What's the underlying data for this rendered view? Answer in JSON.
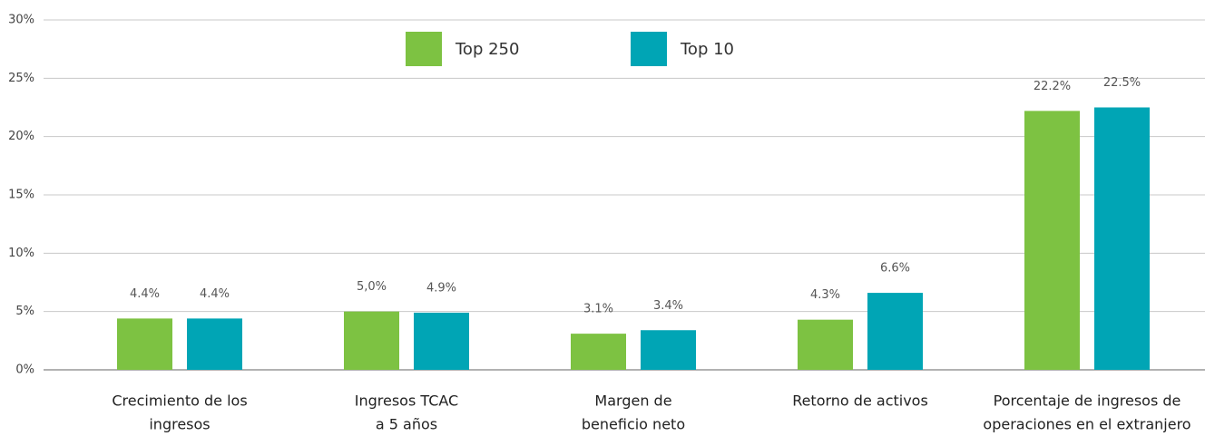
{
  "chart_data": {
    "type": "bar",
    "categories": [
      [
        "Crecimiento de los",
        "ingresos"
      ],
      [
        "Ingresos TCAC",
        "a 5 años"
      ],
      [
        "Margen de",
        "beneficio neto"
      ],
      [
        "Retorno de activos"
      ],
      [
        "Porcentaje de ingresos de",
        "operaciones en el extranjero"
      ]
    ],
    "series": [
      {
        "name": "Top 250",
        "color": "#7dc242",
        "values": [
          4.4,
          5.0,
          3.1,
          4.3,
          22.2
        ],
        "value_labels": [
          "4.4%",
          "5,0%",
          "3.1%",
          "4.3%",
          "22.2%"
        ]
      },
      {
        "name": "Top 10",
        "color": "#00a5b5",
        "values": [
          4.4,
          4.9,
          3.4,
          6.6,
          22.5
        ],
        "value_labels": [
          "4.4%",
          "4.9%",
          "3.4%",
          "6.6%",
          "22.5%"
        ]
      }
    ],
    "ylim": [
      0,
      30
    ],
    "yticks": [
      {
        "value": 0,
        "label": "0%"
      },
      {
        "value": 5,
        "label": "5%"
      },
      {
        "value": 10,
        "label": "10%"
      },
      {
        "value": 15,
        "label": "15%"
      },
      {
        "value": 20,
        "label": "20%"
      },
      {
        "value": 25,
        "label": "25%"
      },
      {
        "value": 30,
        "label": "30%"
      }
    ],
    "grid": true,
    "legend": "top"
  }
}
